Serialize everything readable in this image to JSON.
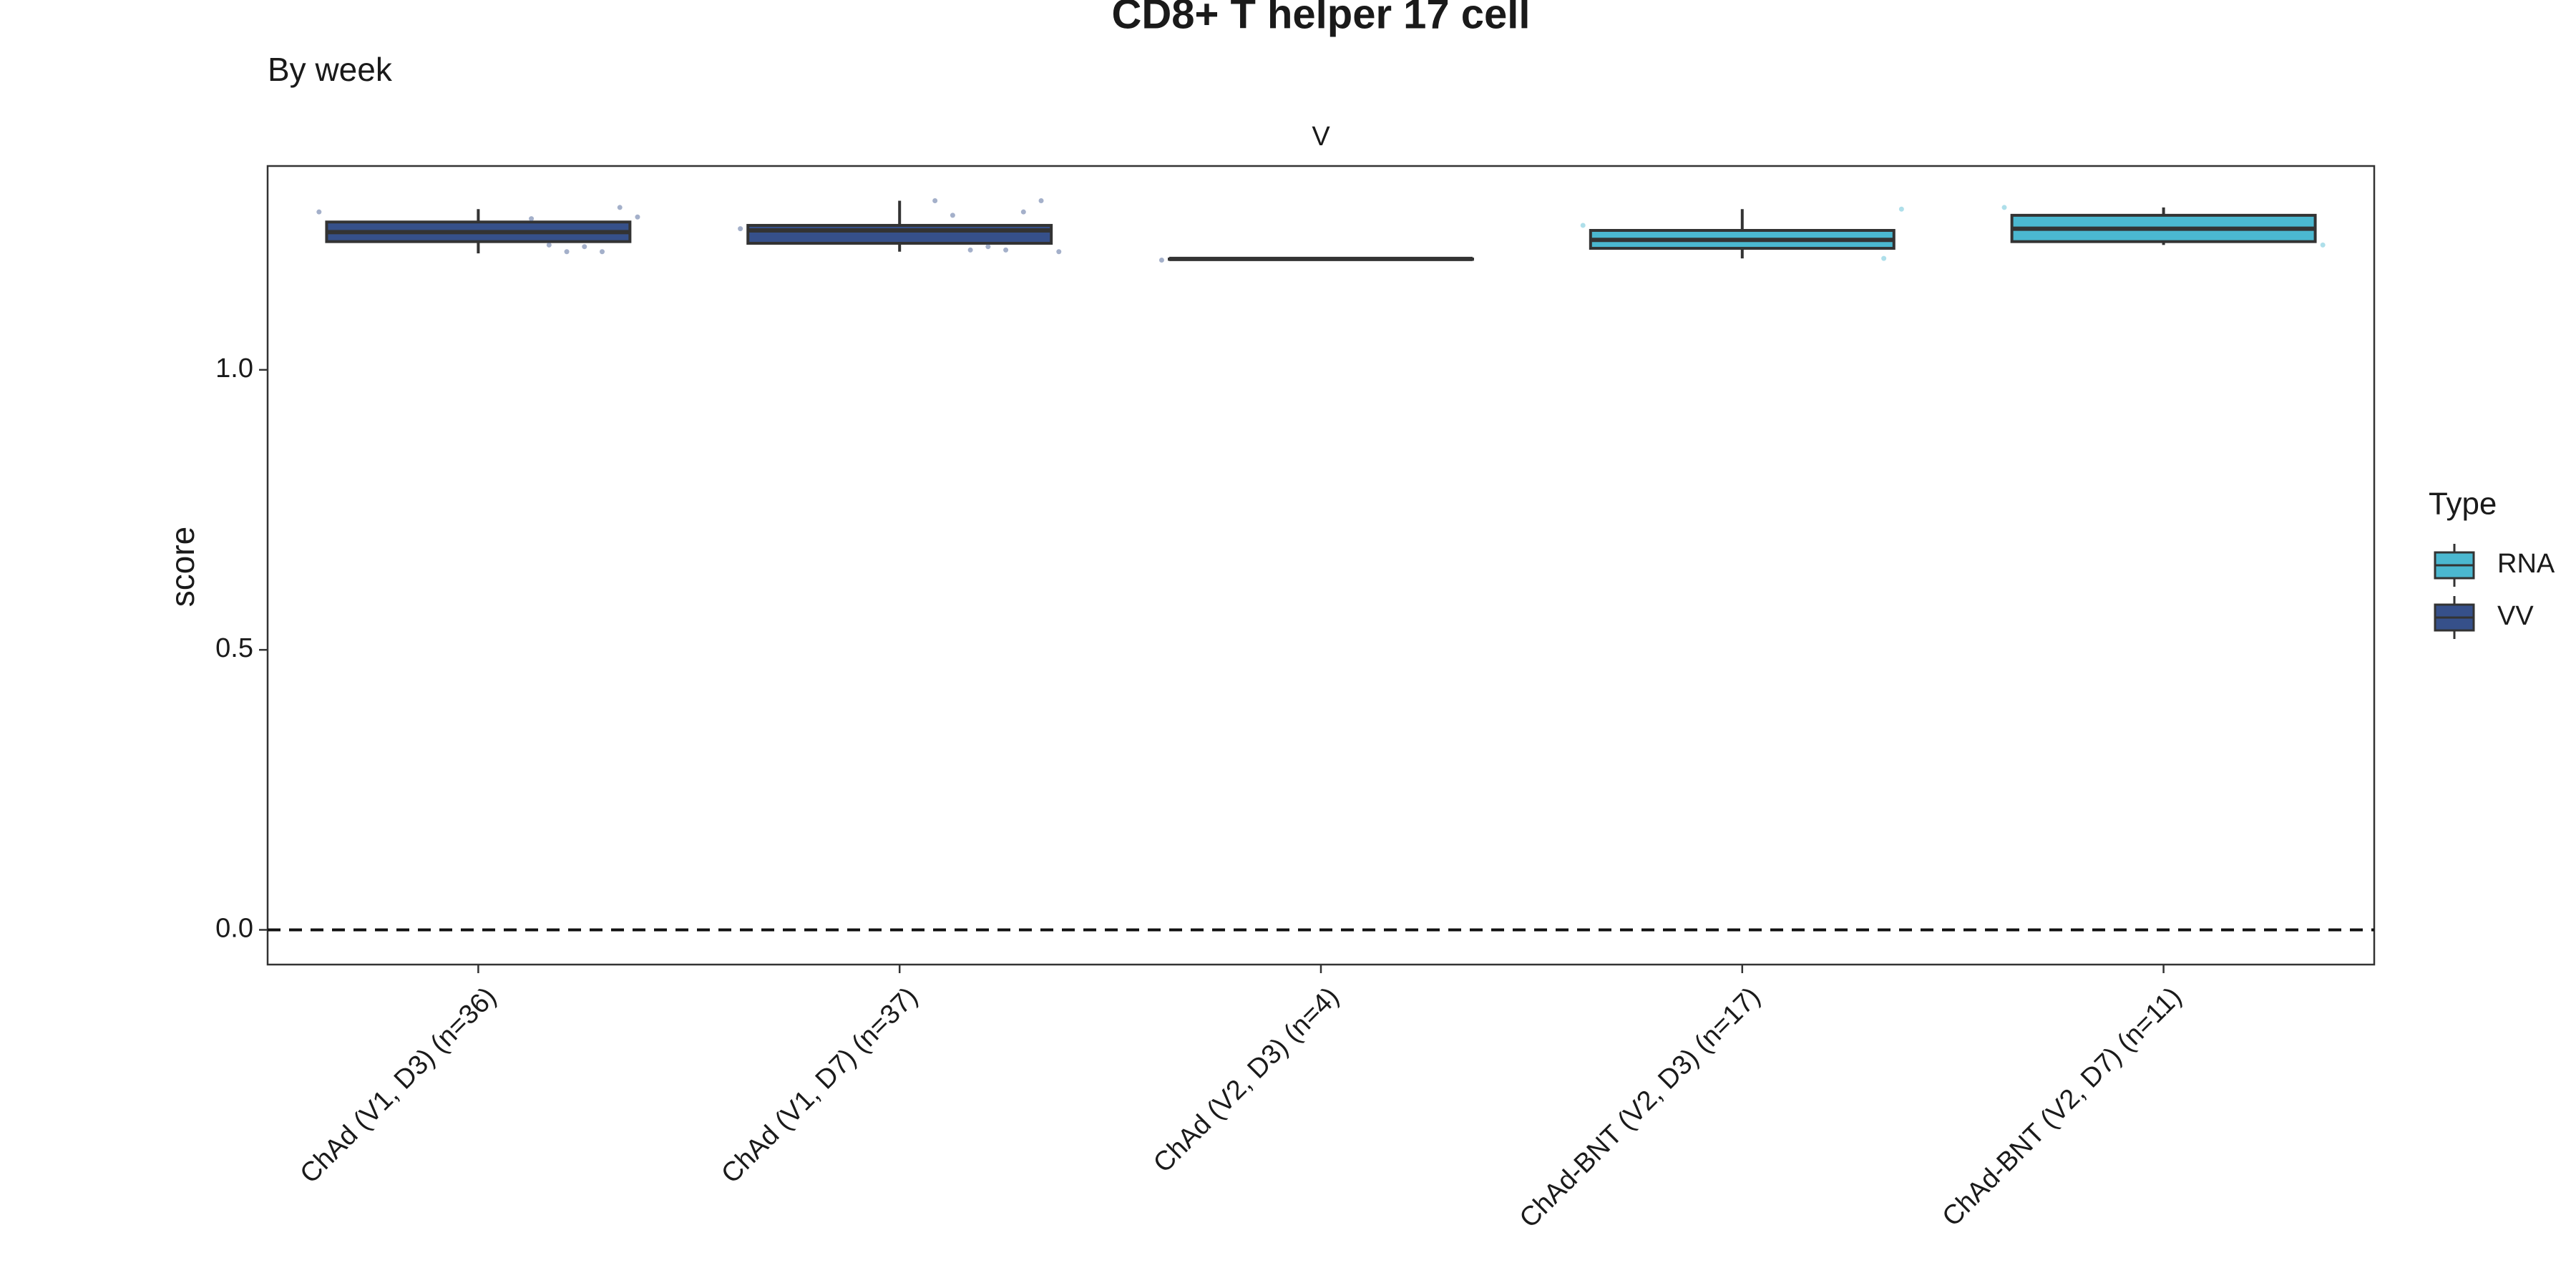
{
  "chart_data": {
    "type": "box",
    "title": "CD8+ T helper 17 cell",
    "subtitle": "By week",
    "facet_label": "V",
    "y_label": "score",
    "legend_title": "Type",
    "groups": [
      {
        "name": "RNA",
        "color": "#4bb8d0"
      },
      {
        "name": "VV",
        "color": "#36508a"
      }
    ],
    "categories": [
      "ChAd (V1, D3) (n=36)",
      "ChAd (V1, D7) (n=37)",
      "ChAd (V2, D3) (n=4)",
      "ChAd-BNT (V2, D3) (n=17)",
      "ChAd-BNT (V2, D7) (n=11)"
    ],
    "boxes": [
      {
        "group": "VV",
        "whislo": 1.208,
        "q1": 1.229,
        "med": 1.246,
        "q3": 1.264,
        "whishi": 1.287,
        "points": [
          1.282,
          1.273,
          1.29,
          1.211,
          1.22,
          1.211,
          1.223,
          1.27
        ]
      },
      {
        "group": "VV",
        "whislo": 1.211,
        "q1": 1.226,
        "med": 1.249,
        "q3": 1.258,
        "whishi": 1.302,
        "points": [
          1.252,
          1.211,
          1.302,
          1.282,
          1.214,
          1.22,
          1.214,
          1.276,
          1.302
        ]
      },
      {
        "group": "VV",
        "whislo": 1.198,
        "q1": 1.198,
        "med": 1.198,
        "q3": 1.198,
        "whishi": 1.198,
        "points": [
          1.196
        ]
      },
      {
        "group": "RNA",
        "whislo": 1.199,
        "q1": 1.217,
        "med": 1.232,
        "q3": 1.249,
        "whishi": 1.287,
        "points": [
          1.258,
          1.287,
          1.199
        ]
      },
      {
        "group": "RNA",
        "whislo": 1.223,
        "q1": 1.229,
        "med": 1.252,
        "q3": 1.276,
        "whishi": 1.29,
        "points": [
          1.29,
          1.223
        ]
      }
    ],
    "hline": 0,
    "ylim": [
      -0.062,
      1.364
    ],
    "yticks": [
      {
        "value": 0,
        "label": "0.0"
      },
      {
        "value": 0.5,
        "label": "0.5"
      },
      {
        "value": 1,
        "label": "1.0"
      }
    ]
  }
}
